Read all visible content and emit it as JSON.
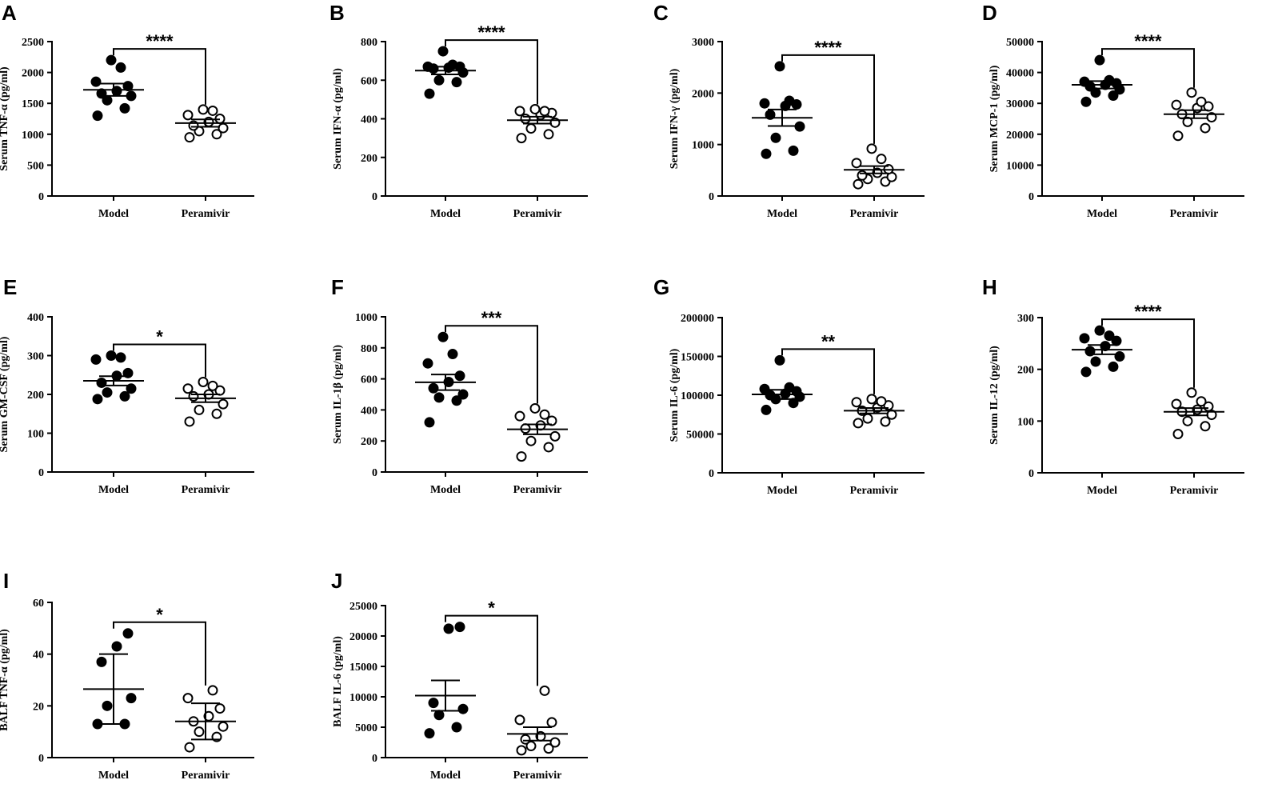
{
  "chart_data": [
    {
      "panel": "A",
      "type": "scatter",
      "ylabel": "Serum TNF-α (pg/ml)",
      "ylim": [
        0,
        2500
      ],
      "yticks": [
        0,
        500,
        1000,
        1500,
        2000,
        2500
      ],
      "categories": [
        "Model",
        "Peramivir"
      ],
      "series": [
        {
          "name": "Model",
          "marker": "filled",
          "values": [
            1300,
            1420,
            1550,
            1620,
            1660,
            1700,
            1780,
            1850,
            2080,
            2200
          ],
          "mean": 1720,
          "err": 100
        },
        {
          "name": "Peramivir",
          "marker": "open",
          "values": [
            950,
            1000,
            1050,
            1100,
            1140,
            1200,
            1250,
            1310,
            1380,
            1400
          ],
          "mean": 1180,
          "err": 60
        }
      ],
      "significance": "****"
    },
    {
      "panel": "B",
      "type": "scatter",
      "ylabel": "Serum IFN-α (pg/ml)",
      "ylim": [
        0,
        800
      ],
      "yticks": [
        0,
        200,
        400,
        600,
        800
      ],
      "categories": [
        "Model",
        "Peramivir"
      ],
      "series": [
        {
          "name": "Model",
          "marker": "filled",
          "values": [
            530,
            590,
            600,
            640,
            660,
            665,
            670,
            670,
            680,
            750
          ],
          "mean": 650,
          "err": 20
        },
        {
          "name": "Peramivir",
          "marker": "open",
          "values": [
            300,
            320,
            350,
            380,
            400,
            420,
            430,
            440,
            440,
            450
          ],
          "mean": 393,
          "err": 18
        }
      ],
      "significance": "****"
    },
    {
      "panel": "C",
      "type": "scatter",
      "ylabel": "Serum IFN-γ (pg/ml)",
      "ylim": [
        0,
        3000
      ],
      "yticks": [
        0,
        1000,
        2000,
        3000
      ],
      "categories": [
        "Model",
        "Peramivir"
      ],
      "series": [
        {
          "name": "Model",
          "marker": "filled",
          "values": [
            820,
            880,
            1130,
            1350,
            1580,
            1750,
            1780,
            1800,
            1850,
            2520
          ],
          "mean": 1520,
          "err": 160
        },
        {
          "name": "Peramivir",
          "marker": "open",
          "values": [
            230,
            280,
            330,
            370,
            400,
            450,
            520,
            640,
            720,
            920
          ],
          "mean": 510,
          "err": 70
        }
      ],
      "significance": "****"
    },
    {
      "panel": "D",
      "type": "scatter",
      "ylabel": "Serum MCP-1 (pg/ml)",
      "ylim": [
        0,
        50000
      ],
      "yticks": [
        0,
        10000,
        20000,
        30000,
        40000,
        50000
      ],
      "categories": [
        "Model",
        "Peramivir"
      ],
      "series": [
        {
          "name": "Model",
          "marker": "filled",
          "values": [
            30500,
            32500,
            33500,
            34500,
            35500,
            36000,
            36500,
            37000,
            37500,
            44000
          ],
          "mean": 36000,
          "err": 1200
        },
        {
          "name": "Peramivir",
          "marker": "open",
          "values": [
            19500,
            22000,
            24000,
            25500,
            26500,
            28500,
            29000,
            29500,
            30500,
            33500
          ],
          "mean": 26500,
          "err": 1300
        }
      ],
      "significance": "****"
    },
    {
      "panel": "E",
      "type": "scatter",
      "ylabel": "Serum GM-CSF (pg/ml)",
      "ylim": [
        0,
        400
      ],
      "yticks": [
        0,
        100,
        200,
        300,
        400
      ],
      "categories": [
        "Model",
        "Peramivir"
      ],
      "series": [
        {
          "name": "Model",
          "marker": "filled",
          "values": [
            188,
            195,
            205,
            215,
            230,
            248,
            255,
            290,
            295,
            300
          ],
          "mean": 235,
          "err": 12
        },
        {
          "name": "Peramivir",
          "marker": "open",
          "values": [
            130,
            150,
            160,
            175,
            195,
            200,
            210,
            215,
            222,
            232
          ],
          "mean": 190,
          "err": 10
        }
      ],
      "significance": "*"
    },
    {
      "panel": "F",
      "type": "scatter",
      "ylabel": "Serum IL-1β (pg/ml)",
      "ylim": [
        0,
        1000
      ],
      "yticks": [
        0,
        200,
        400,
        600,
        800,
        1000
      ],
      "categories": [
        "Model",
        "Peramivir"
      ],
      "series": [
        {
          "name": "Model",
          "marker": "filled",
          "values": [
            320,
            460,
            480,
            500,
            540,
            580,
            620,
            700,
            760,
            870
          ],
          "mean": 578,
          "err": 50
        },
        {
          "name": "Peramivir",
          "marker": "open",
          "values": [
            100,
            160,
            200,
            230,
            280,
            300,
            330,
            360,
            370,
            410
          ],
          "mean": 275,
          "err": 32
        }
      ],
      "significance": "***"
    },
    {
      "panel": "G",
      "type": "scatter",
      "ylabel": "Serum IL-6 (pg/ml)",
      "ylim": [
        0,
        200000
      ],
      "yticks": [
        0,
        50000,
        100000,
        150000,
        200000
      ],
      "categories": [
        "Model",
        "Peramivir"
      ],
      "series": [
        {
          "name": "Model",
          "marker": "filled",
          "values": [
            81000,
            90000,
            95000,
            98000,
            100000,
            102000,
            105000,
            108000,
            110000,
            145000
          ],
          "mean": 101000,
          "err": 6000
        },
        {
          "name": "Peramivir",
          "marker": "open",
          "values": [
            64000,
            66000,
            70000,
            75000,
            80000,
            84000,
            87000,
            91000,
            92000,
            95000
          ],
          "mean": 80000,
          "err": 3500
        }
      ],
      "significance": "**"
    },
    {
      "panel": "H",
      "type": "scatter",
      "ylabel": "Serum IL-12 (pg/ml)",
      "ylim": [
        0,
        300
      ],
      "yticks": [
        0,
        100,
        200,
        300
      ],
      "categories": [
        "Model",
        "Peramivir"
      ],
      "series": [
        {
          "name": "Model",
          "marker": "filled",
          "values": [
            195,
            205,
            215,
            225,
            235,
            245,
            255,
            260,
            265,
            275
          ],
          "mean": 238,
          "err": 9
        },
        {
          "name": "Peramivir",
          "marker": "open",
          "values": [
            75,
            90,
            100,
            112,
            118,
            122,
            128,
            133,
            138,
            155
          ],
          "mean": 118,
          "err": 7
        }
      ],
      "significance": "****"
    },
    {
      "panel": "I",
      "type": "scatter",
      "ylabel": "BALF TNF-α (pg/ml)",
      "ylim": [
        0,
        60
      ],
      "yticks": [
        0,
        20,
        40,
        60
      ],
      "categories": [
        "Model",
        "Peramivir"
      ],
      "series": [
        {
          "name": "Model",
          "marker": "filled",
          "values": [
            13,
            13,
            20,
            23,
            37,
            43,
            48
          ],
          "mean": 26.5,
          "err": 13.5
        },
        {
          "name": "Peramivir",
          "marker": "open",
          "values": [
            4,
            8,
            10,
            12,
            14,
            16,
            19,
            23,
            26
          ],
          "mean": 14,
          "err": 7
        }
      ],
      "significance": "*"
    },
    {
      "panel": "J",
      "type": "scatter",
      "ylabel": "BALF IL-6 (pg/ml)",
      "ylim": [
        0,
        25000
      ],
      "yticks": [
        0,
        5000,
        10000,
        15000,
        20000,
        25000
      ],
      "categories": [
        "Model",
        "Peramivir"
      ],
      "series": [
        {
          "name": "Model",
          "marker": "filled",
          "values": [
            4000,
            5000,
            7000,
            8000,
            9000,
            21200,
            21500
          ],
          "mean": 10200,
          "err": 2500
        },
        {
          "name": "Peramivir",
          "marker": "open",
          "values": [
            1200,
            1500,
            1900,
            2500,
            3000,
            3500,
            5800,
            6200,
            11000
          ],
          "mean": 3900,
          "err": 1100
        }
      ],
      "significance": "*"
    }
  ]
}
